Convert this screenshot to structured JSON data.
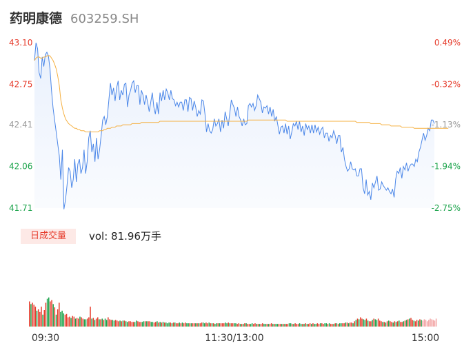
{
  "stock": {
    "name": "药明康德",
    "code": "603259.SH"
  },
  "volume_panel": {
    "tab_label": "日成交量",
    "vol_prefix": "vol: ",
    "vol_value": "81.96万手"
  },
  "colors": {
    "price_line": "#4a86e8",
    "avg_line": "#f5b041",
    "up": "#e63c2c",
    "down": "#1aa34a",
    "neutral": "#999999"
  },
  "chart_data": [
    {
      "type": "line",
      "title": "",
      "x_labels": [
        "09:30",
        "11:30/13:00",
        "15:00"
      ],
      "y_ticks": [
        43.1,
        42.75,
        42.41,
        42.06,
        41.71
      ],
      "y_tick_labels": [
        "43.10",
        "42.75",
        "42.41",
        "42.06",
        "41.71"
      ],
      "pct_ticks": [
        "0.49%",
        "-0.32%",
        "-1.13%",
        "-1.94%",
        "-2.75%"
      ],
      "ylim": [
        41.71,
        43.1
      ],
      "series": [
        {
          "values": [
            42.95,
            43.1,
            43.05,
            42.85,
            42.8,
            42.98,
            42.9,
            43.0,
            43.02,
            42.99,
            42.88,
            42.7,
            42.55,
            42.45,
            42.35,
            42.25,
            42.15,
            41.95,
            42.2,
            41.7,
            41.78,
            41.9,
            42.05,
            42.02,
            41.88,
            41.95,
            42.12,
            41.93,
            42.08,
            42.12,
            42.0,
            42.05,
            42.2,
            42.0,
            42.1,
            42.3,
            42.36,
            42.18,
            42.25,
            42.1,
            42.3,
            42.12,
            42.2,
            42.32,
            42.45,
            42.48,
            42.41,
            42.48,
            42.62,
            42.76,
            42.66,
            42.72,
            42.61,
            42.72,
            42.78,
            42.62,
            42.7,
            42.66,
            42.75,
            42.76,
            42.56,
            42.66,
            42.7,
            42.76,
            42.78,
            42.68,
            42.74,
            42.74,
            42.58,
            42.7,
            42.66,
            42.58,
            42.66,
            42.6,
            42.52,
            42.6,
            42.68,
            42.56,
            42.5,
            42.6,
            42.5,
            42.68,
            42.61,
            42.7,
            42.62,
            42.71,
            42.68,
            42.62,
            42.7,
            42.63,
            42.62,
            42.57,
            42.6,
            42.56,
            42.6,
            42.6,
            42.53,
            42.62,
            42.62,
            42.52,
            42.64,
            42.63,
            42.53,
            42.61,
            42.56,
            42.48,
            42.53,
            42.5,
            42.62,
            42.61,
            42.5,
            42.35,
            42.42,
            42.36,
            42.34,
            42.37,
            42.46,
            42.4,
            42.42,
            42.46,
            42.35,
            42.45,
            42.38,
            42.52,
            42.46,
            42.4,
            42.51,
            42.62,
            42.58,
            42.55,
            42.48,
            42.56,
            42.48,
            42.45,
            42.4,
            42.46,
            42.41,
            42.42,
            42.57,
            42.59,
            42.56,
            42.59,
            42.53,
            42.57,
            42.66,
            42.63,
            42.6,
            42.51,
            42.56,
            42.55,
            42.57,
            42.5,
            42.56,
            42.48,
            42.54,
            42.44,
            42.48,
            42.41,
            42.33,
            42.39,
            42.4,
            42.34,
            42.42,
            42.33,
            42.4,
            42.29,
            42.35,
            42.42,
            42.4,
            42.44,
            42.37,
            42.44,
            42.35,
            42.4,
            42.32,
            42.42,
            42.37,
            42.4,
            42.34,
            42.41,
            42.34,
            42.41,
            42.35,
            42.39,
            42.33,
            42.37,
            42.39,
            42.3,
            42.34,
            42.34,
            42.27,
            42.32,
            42.3,
            42.36,
            42.32,
            42.25,
            42.32,
            42.32,
            42.18,
            42.22,
            42.12,
            42.06,
            42.02,
            42.04,
            42.1,
            42.04,
            42.03,
            42.04,
            41.98,
            41.98,
            42.04,
            42.04,
            41.88,
            41.83,
            41.95,
            41.82,
            41.85,
            41.78,
            41.92,
            41.88,
            41.93,
            41.98,
            41.86,
            41.87,
            41.93,
            41.9,
            41.88,
            41.86,
            41.88,
            41.85,
            41.83,
            41.87,
            41.8,
            41.95,
            42.02,
            42.0,
            42.05,
            41.96,
            42.06,
            42.03,
            42.09,
            42.02,
            42.06,
            42.08,
            42.08,
            42.06,
            42.12,
            42.1,
            42.18,
            42.22,
            42.28,
            42.34,
            42.28,
            42.32,
            42.38,
            42.36,
            42.45,
            42.45,
            42.42
          ]
        },
        {
          "values": [
            42.95,
            42.97,
            42.98,
            42.98,
            42.97,
            42.97,
            42.98,
            42.98,
            42.99,
            42.99,
            42.99,
            42.97,
            42.95,
            42.92,
            42.88,
            42.82,
            42.74,
            42.62,
            42.55,
            42.5,
            42.46,
            42.44,
            42.42,
            42.41,
            42.4,
            42.39,
            42.38,
            42.38,
            42.37,
            42.37,
            42.36,
            42.36,
            42.36,
            42.35,
            42.35,
            42.35,
            42.35,
            42.35,
            42.35,
            42.35,
            42.35,
            42.35,
            42.36,
            42.36,
            42.36,
            42.37,
            42.37,
            42.38,
            42.38,
            42.38,
            42.39,
            42.39,
            42.39,
            42.4,
            42.4,
            42.4,
            42.4,
            42.41,
            42.41,
            42.41,
            42.41,
            42.41,
            42.41,
            42.42,
            42.42,
            42.42,
            42.42,
            42.42,
            42.42,
            42.43,
            42.43,
            42.43,
            42.43,
            42.43,
            42.43,
            42.43,
            42.43,
            42.43,
            42.43,
            42.43,
            42.43,
            42.44,
            42.44,
            42.44,
            42.44,
            42.44,
            42.44,
            42.44,
            42.44,
            42.44,
            42.44,
            42.44,
            42.44,
            42.44,
            42.44,
            42.44,
            42.44,
            42.44,
            42.44,
            42.44,
            42.44,
            42.44,
            42.44,
            42.44,
            42.44,
            42.44,
            42.44,
            42.44,
            42.44,
            42.44,
            42.44,
            42.44,
            42.44,
            42.44,
            42.44,
            42.44,
            42.44,
            42.44,
            42.44,
            42.44,
            42.44,
            42.44,
            42.44,
            42.44,
            42.44,
            42.44,
            42.44,
            42.44,
            42.44,
            42.44,
            42.44,
            42.44,
            42.44,
            42.44,
            42.44,
            42.44,
            42.44,
            42.44,
            42.45,
            42.45,
            42.45,
            42.45,
            42.45,
            42.45,
            42.45,
            42.45,
            42.45,
            42.45,
            42.45,
            42.45,
            42.45,
            42.45,
            42.45,
            42.45,
            42.45,
            42.45,
            42.45,
            42.45,
            42.45,
            42.45,
            42.45,
            42.45,
            42.45,
            42.44,
            42.44,
            42.44,
            42.44,
            42.44,
            42.44,
            42.44,
            42.44,
            42.44,
            42.44,
            42.44,
            42.44,
            42.44,
            42.44,
            42.44,
            42.44,
            42.44,
            42.44,
            42.44,
            42.44,
            42.44,
            42.44,
            42.44,
            42.44,
            42.44,
            42.44,
            42.44,
            42.44,
            42.44,
            42.44,
            42.44,
            42.44,
            42.44,
            42.44,
            42.44,
            42.44,
            42.44,
            42.44,
            42.44,
            42.44,
            42.44,
            42.44,
            42.44,
            42.44,
            42.44,
            42.43,
            42.43,
            42.43,
            42.43,
            42.43,
            42.43,
            42.43,
            42.43,
            42.43,
            42.42,
            42.42,
            42.42,
            42.42,
            42.42,
            42.42,
            42.42,
            42.41,
            42.41,
            42.41,
            42.41,
            42.41,
            42.41,
            42.4,
            42.4,
            42.4,
            42.4,
            42.4,
            42.4,
            42.4,
            42.39,
            42.39,
            42.39,
            42.39,
            42.39,
            42.39,
            42.39,
            42.39,
            42.38,
            42.38,
            42.38,
            42.38,
            42.38,
            42.38,
            42.38,
            42.38,
            42.38,
            42.38,
            42.38,
            42.38,
            42.38,
            42.38,
            42.38,
            42.38,
            42.38,
            42.38,
            42.38,
            42.38,
            42.38,
            42.38,
            42.38
          ]
        }
      ]
    },
    {
      "type": "bar",
      "title": "",
      "volumes": [
        38,
        34,
        36,
        33,
        30,
        24,
        26,
        22,
        30,
        18,
        25,
        36,
        42,
        44,
        38,
        40,
        34,
        29,
        18,
        26,
        36,
        22,
        24,
        20,
        18,
        19,
        14,
        15,
        13,
        16,
        15,
        12,
        13,
        12,
        15,
        14,
        12,
        11,
        11,
        12,
        14,
        30,
        12,
        13,
        10,
        12,
        14,
        11,
        11,
        12,
        10,
        12,
        10,
        14,
        11,
        10,
        10,
        9,
        10,
        9,
        8,
        9,
        8,
        9,
        9,
        8,
        7,
        8,
        8,
        7,
        7,
        7,
        9,
        8,
        7,
        7,
        7,
        8,
        8,
        8,
        8,
        8,
        7,
        7,
        6,
        7,
        8,
        6,
        7,
        6,
        7,
        6,
        6,
        5,
        6,
        6,
        5,
        6,
        6,
        5,
        5,
        6,
        5,
        6,
        5,
        6,
        5,
        5,
        5,
        5,
        5,
        5,
        5,
        5,
        5,
        5,
        6,
        6,
        5,
        6,
        5,
        6,
        5,
        5,
        5,
        4,
        5,
        5,
        5,
        5,
        5,
        5,
        6,
        5,
        6,
        5,
        5,
        5,
        5,
        5,
        4,
        5,
        4,
        4,
        4,
        5,
        5,
        4,
        4,
        4,
        5,
        4,
        5,
        4,
        4,
        4,
        4,
        5,
        4,
        4,
        4,
        4,
        4,
        5,
        4,
        4,
        4,
        4,
        4,
        4,
        4,
        4,
        4,
        4,
        4,
        5,
        5,
        4,
        4,
        5,
        4,
        4,
        5,
        4,
        4,
        4,
        5,
        4,
        4,
        5,
        4,
        5,
        4,
        4,
        5,
        4,
        5,
        5,
        4,
        5,
        5,
        4,
        5,
        4,
        4,
        4,
        5,
        5,
        4,
        5,
        5,
        5,
        5,
        6,
        6,
        5,
        6,
        6,
        5,
        8,
        10,
        12,
        11,
        14,
        12,
        11,
        10,
        12,
        9,
        8,
        8,
        10,
        12,
        11,
        10,
        12,
        9,
        8,
        7,
        7,
        6,
        8,
        9,
        8,
        7,
        6,
        8,
        7,
        8,
        9,
        7,
        7,
        8,
        9,
        10,
        11,
        12,
        13,
        10,
        9,
        8,
        10,
        9,
        11,
        10,
        9,
        11,
        10,
        8,
        10,
        12,
        11,
        10,
        9,
        12
      ],
      "directions": [
        1,
        0,
        1,
        1,
        1,
        0,
        1,
        1,
        1,
        0,
        1,
        1,
        0,
        0,
        1,
        1,
        0,
        1,
        0,
        1,
        1,
        0,
        0,
        0,
        1,
        1,
        1,
        1,
        0,
        1,
        1,
        0,
        1,
        1,
        0,
        1,
        1,
        0,
        0,
        1,
        1,
        1,
        0,
        1,
        0,
        1,
        1,
        0,
        1,
        0,
        1,
        0,
        0,
        1,
        1,
        1,
        0,
        0,
        1,
        1,
        1,
        0,
        1,
        0,
        1,
        0,
        0,
        1,
        1,
        1,
        1,
        0,
        0,
        1,
        1,
        1,
        0,
        0,
        1,
        0,
        1,
        1,
        0,
        0,
        1,
        1,
        0,
        1,
        0,
        1,
        0,
        1,
        0,
        0,
        0,
        1,
        0,
        1,
        0,
        1,
        1,
        0,
        1,
        0,
        1,
        1,
        0,
        0,
        1,
        0,
        1,
        1,
        0,
        1,
        0,
        1,
        1,
        0,
        0,
        1,
        1,
        0,
        1,
        0,
        1,
        0,
        0,
        1,
        0,
        1,
        1,
        1,
        0,
        0,
        1,
        0,
        1,
        1,
        0,
        0,
        1,
        1,
        0,
        1,
        0,
        1,
        0,
        1,
        1,
        0,
        0,
        1,
        1,
        0,
        1,
        0,
        1,
        1,
        0,
        0,
        1,
        0,
        1,
        1,
        0,
        1,
        0,
        0,
        1,
        1,
        0,
        1,
        0,
        1,
        1,
        0,
        0,
        1,
        0,
        1,
        1,
        1,
        0,
        0,
        1,
        0,
        1,
        0,
        1,
        1,
        0,
        1,
        0,
        0,
        1,
        1,
        0,
        1,
        1,
        0,
        0,
        1,
        0,
        1,
        1,
        0,
        1,
        0,
        1,
        0,
        0,
        1,
        1,
        0,
        1,
        0,
        1,
        1,
        0,
        1,
        0,
        1,
        0,
        1,
        1,
        0,
        0,
        1,
        0,
        1,
        1,
        0,
        1,
        0,
        0,
        1,
        1,
        1,
        0,
        1,
        0,
        1,
        0,
        1,
        1,
        0,
        1,
        0,
        1,
        0,
        1,
        1,
        0,
        1,
        0,
        1,
        0,
        1,
        1,
        0,
        1,
        1,
        0,
        1,
        0,
        2
      ],
      "ylim": [
        0,
        100
      ]
    }
  ]
}
